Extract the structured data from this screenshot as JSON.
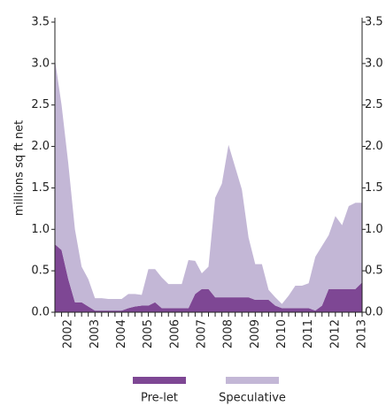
{
  "chart_data": {
    "type": "stacked_area",
    "y_label": "millions sq ft net",
    "categories": [
      null,
      null,
      "2002",
      null,
      null,
      null,
      "2003",
      null,
      null,
      null,
      "2004",
      null,
      null,
      null,
      "2005",
      null,
      null,
      null,
      "2006",
      null,
      null,
      null,
      "2007",
      null,
      null,
      null,
      "2008",
      null,
      null,
      null,
      "2009",
      null,
      null,
      null,
      "2010",
      null,
      null,
      null,
      "2011",
      null,
      null,
      null,
      "2012",
      null,
      null,
      null,
      "2013"
    ],
    "series": [
      {
        "name": "Pre-let",
        "color": "#7e4794",
        "values": [
          0.82,
          0.75,
          0.4,
          0.12,
          0.12,
          0.07,
          0.02,
          0.02,
          0.02,
          0.02,
          0.02,
          0.05,
          0.07,
          0.08,
          0.08,
          0.12,
          0.05,
          0.05,
          0.05,
          0.05,
          0.05,
          0.22,
          0.28,
          0.28,
          0.18,
          0.18,
          0.18,
          0.18,
          0.18,
          0.18,
          0.15,
          0.15,
          0.15,
          0.08,
          0.05,
          0.05,
          0.05,
          0.05,
          0.05,
          0.02,
          0.08,
          0.28,
          0.28,
          0.28,
          0.28,
          0.28,
          0.36
        ]
      },
      {
        "name": "Speculative",
        "color": "#c3b7d6",
        "values": [
          2.23,
          1.75,
          1.4,
          0.88,
          0.43,
          0.33,
          0.15,
          0.15,
          0.14,
          0.14,
          0.14,
          0.17,
          0.15,
          0.13,
          0.44,
          0.4,
          0.37,
          0.29,
          0.29,
          0.29,
          0.58,
          0.4,
          0.19,
          0.27,
          1.2,
          1.37,
          1.84,
          1.57,
          1.3,
          0.72,
          0.43,
          0.43,
          0.12,
          0.1,
          0.05,
          0.15,
          0.27,
          0.27,
          0.3,
          0.65,
          0.72,
          0.65,
          0.88,
          0.77,
          1.0,
          1.04,
          0.96
        ]
      }
    ],
    "ylim": [
      0,
      3.5
    ],
    "yticks": [
      {
        "value": 0,
        "label": "0.0"
      },
      0.5,
      {
        "value": 1,
        "label": "1.0"
      },
      1.5,
      {
        "value": 2,
        "label": "2.0"
      },
      2.5,
      {
        "value": 3,
        "label": "3.0"
      },
      3.5
    ],
    "y2lim": [
      0,
      3.5
    ],
    "y2ticks": [
      {
        "value": 0,
        "label": "0.0"
      },
      0.5,
      {
        "value": 1,
        "label": "1.0"
      },
      1.5,
      {
        "value": 2,
        "label": "2.0"
      },
      2.5,
      {
        "value": 3,
        "label": "3.0"
      },
      3.5
    ],
    "legend": "bottom"
  }
}
